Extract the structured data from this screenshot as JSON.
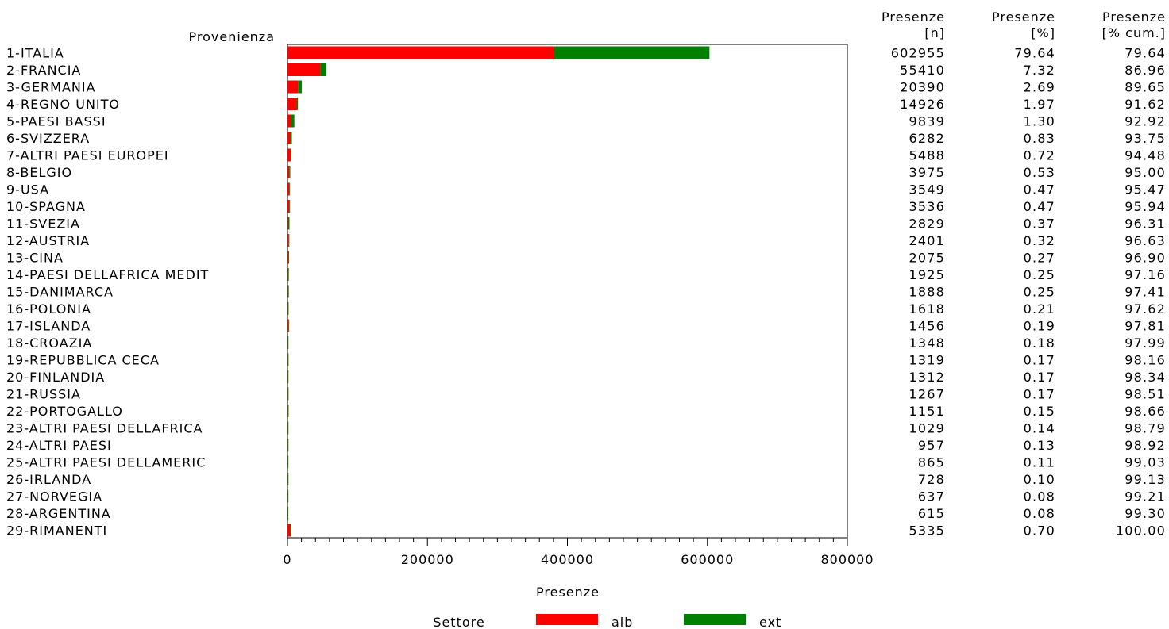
{
  "chart_data": {
    "type": "bar",
    "orientation": "horizontal",
    "stacked": true,
    "ylabel": "Provenienza",
    "xlabel": "Presenze",
    "xlim": [
      0,
      800000
    ],
    "xticks": [
      "0",
      "200000",
      "400000",
      "600000",
      "800000"
    ],
    "legend_title": "Settore",
    "legend_position": "bottom",
    "grid": false,
    "table_headers": [
      {
        "line1": "Presenze",
        "line2": "[n]"
      },
      {
        "line1": "Presenze",
        "line2": "[%]"
      },
      {
        "line1": "Presenze",
        "line2": "[% cum.]"
      }
    ],
    "categories": [
      "1-ITALIA",
      "2-FRANCIA",
      "3-GERMANIA",
      "4-REGNO UNITO",
      "5-PAESI BASSI",
      "6-SVIZZERA",
      "7-ALTRI PAESI EUROPEI",
      "8-BELGIO",
      "9-USA",
      "10-SPAGNA",
      "11-SVEZIA",
      "12-AUSTRIA",
      "13-CINA",
      "14-PAESI DELLAFRICA MEDIT",
      "15-DANIMARCA",
      "16-POLONIA",
      "17-ISLANDA",
      "18-CROAZIA",
      "19-REPUBBLICA CECA",
      "20-FINLANDIA",
      "21-RUSSIA",
      "22-PORTOGALLO",
      "23-ALTRI PAESI DELLAFRICA",
      "24-ALTRI PAESI",
      "25-ALTRI PAESI DELLAMERIC",
      "26-IRLANDA",
      "27-NORVEGIA",
      "28-ARGENTINA",
      "29-RIMANENTI"
    ],
    "series": [
      {
        "name": "alb",
        "color": "#ff0000",
        "values": [
          381000,
          47000,
          15000,
          13000,
          5000,
          4000,
          4500,
          2500,
          2500,
          2500,
          1000,
          1500,
          1200,
          500,
          600,
          500,
          1300,
          300,
          400,
          300,
          400,
          500,
          300,
          300,
          200,
          300,
          200,
          150,
          4000
        ]
      },
      {
        "name": "ext",
        "color": "#008000",
        "values": [
          221955,
          8410,
          5390,
          1926,
          4839,
          2282,
          988,
          1475,
          1049,
          1036,
          1829,
          901,
          875,
          1425,
          1288,
          1118,
          156,
          1048,
          919,
          1012,
          867,
          651,
          729,
          657,
          665,
          428,
          437,
          465,
          1335
        ]
      }
    ],
    "presenze_n": [
      "602955",
      "55410",
      "20390",
      "14926",
      "9839",
      "6282",
      "5488",
      "3975",
      "3549",
      "3536",
      "2829",
      "2401",
      "2075",
      "1925",
      "1888",
      "1618",
      "1456",
      "1348",
      "1319",
      "1312",
      "1267",
      "1151",
      "1029",
      "957",
      "865",
      "728",
      "637",
      "615",
      "5335"
    ],
    "presenze_pct": [
      "79.64",
      "7.32",
      "2.69",
      "1.97",
      "1.30",
      "0.83",
      "0.72",
      "0.53",
      "0.47",
      "0.47",
      "0.37",
      "0.32",
      "0.27",
      "0.25",
      "0.25",
      "0.21",
      "0.19",
      "0.18",
      "0.17",
      "0.17",
      "0.17",
      "0.15",
      "0.14",
      "0.13",
      "0.11",
      "0.10",
      "0.08",
      "0.08",
      "0.70"
    ],
    "presenze_cum": [
      "79.64",
      "86.96",
      "89.65",
      "91.62",
      "92.92",
      "93.75",
      "94.48",
      "95.00",
      "95.47",
      "95.94",
      "96.31",
      "96.63",
      "96.90",
      "97.16",
      "97.41",
      "97.62",
      "97.81",
      "97.99",
      "98.16",
      "98.34",
      "98.51",
      "98.66",
      "98.79",
      "98.92",
      "99.03",
      "99.13",
      "99.21",
      "99.30",
      "100.00"
    ]
  }
}
